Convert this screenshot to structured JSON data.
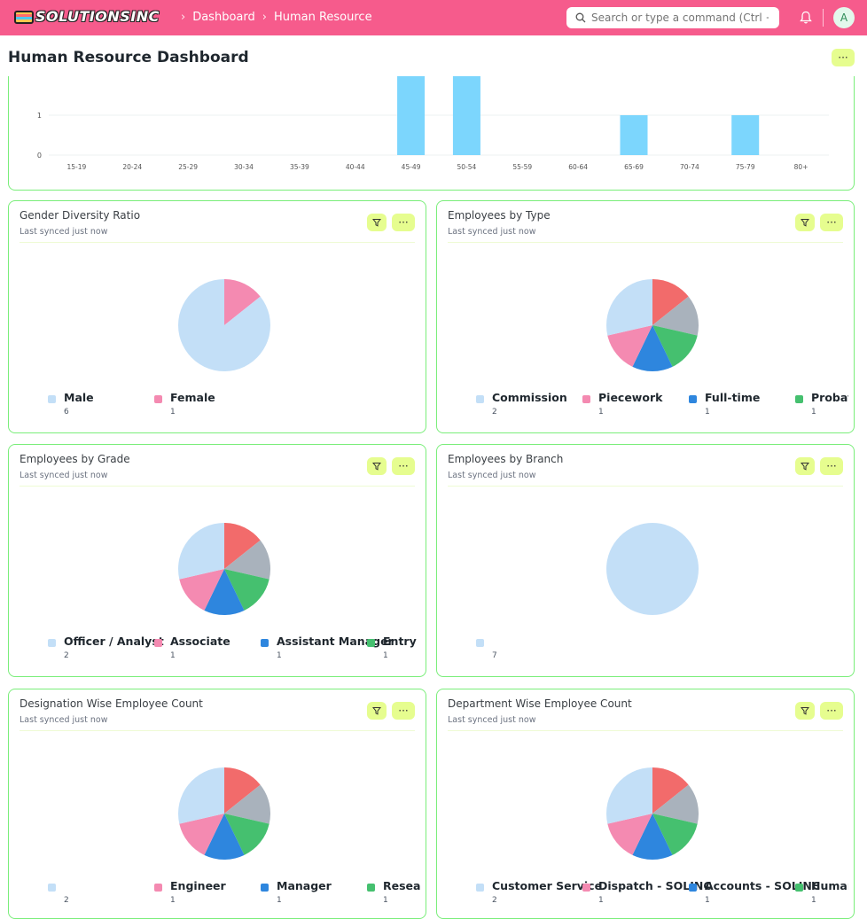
{
  "navbar": {
    "logo_text": "SOLUTIONSINC",
    "breadcrumbs": [
      "Dashboard",
      "Human Resource"
    ],
    "search_placeholder": "Search or type a command (Ctrl + G)",
    "avatar_letter": "A",
    "colors": {
      "bar": "#f65b8c",
      "accent": "#e6fd8f",
      "card_border": "#7aee7a"
    }
  },
  "page": {
    "title": "Human Resource Dashboard",
    "more_label": "···"
  },
  "age_chart": {
    "chart_data": {
      "type": "bar",
      "categories": [
        "15-19",
        "20-24",
        "25-29",
        "30-34",
        "35-39",
        "40-44",
        "45-49",
        "50-54",
        "55-59",
        "60-64",
        "65-69",
        "70-74",
        "75-79",
        "80+"
      ],
      "values": [
        0,
        0,
        0,
        0,
        0,
        0,
        2,
        2,
        0,
        0,
        1,
        0,
        1,
        0
      ],
      "visible_yticks": [
        "0",
        "1"
      ],
      "ylim": [
        0,
        2
      ],
      "color": "#7cd6fd"
    }
  },
  "cards": [
    {
      "title": "Gender Diversity Ratio",
      "subtitle": "Last synced just now",
      "more_label": "···",
      "chart_data": {
        "type": "pie",
        "slices": [
          {
            "label": "Male",
            "value": 6,
            "color": "#c3dff7"
          },
          {
            "label": "Female",
            "value": 1,
            "color": "#f48ab1"
          }
        ]
      }
    },
    {
      "title": "Employees by Type",
      "subtitle": "Last synced just now",
      "more_label": "···",
      "chart_data": {
        "type": "pie",
        "slices": [
          {
            "label": "Commission",
            "value": 2,
            "color": "#c3dff7"
          },
          {
            "label": "Piecework",
            "value": 1,
            "color": "#f48ab1"
          },
          {
            "label": "Full-time",
            "value": 1,
            "color": "#2e86de"
          },
          {
            "label": "Probation",
            "value": 1,
            "color": "#45c06f"
          },
          {
            "label": "",
            "value": 1,
            "color": "#a9b2bc"
          },
          {
            "label": "",
            "value": 1,
            "color": "#f26b6b"
          }
        ]
      }
    },
    {
      "title": "Employees by Grade",
      "subtitle": "Last synced just now",
      "more_label": "···",
      "chart_data": {
        "type": "pie",
        "slices": [
          {
            "label": "Officer / Analyst",
            "value": 2,
            "color": "#c3dff7"
          },
          {
            "label": "Associate",
            "value": 1,
            "color": "#f48ab1"
          },
          {
            "label": "Assistant Manager",
            "value": 1,
            "color": "#2e86de"
          },
          {
            "label": "Entry Level",
            "value": 1,
            "color": "#45c06f"
          },
          {
            "label": "",
            "value": 1,
            "color": "#a9b2bc"
          },
          {
            "label": "",
            "value": 1,
            "color": "#f26b6b"
          }
        ]
      }
    },
    {
      "title": "Employees by Branch",
      "subtitle": "Last synced just now",
      "more_label": "···",
      "chart_data": {
        "type": "pie",
        "slices": [
          {
            "label": "",
            "value": 7,
            "color": "#c3dff7"
          }
        ]
      }
    },
    {
      "title": "Designation Wise Employee Count",
      "subtitle": "Last synced just now",
      "more_label": "···",
      "chart_data": {
        "type": "pie",
        "slices": [
          {
            "label": "",
            "value": 2,
            "color": "#c3dff7"
          },
          {
            "label": "Engineer",
            "value": 1,
            "color": "#f48ab1"
          },
          {
            "label": "Manager",
            "value": 1,
            "color": "#2e86de"
          },
          {
            "label": "Researcher",
            "value": 1,
            "color": "#45c06f"
          },
          {
            "label": "",
            "value": 1,
            "color": "#a9b2bc"
          },
          {
            "label": "",
            "value": 1,
            "color": "#f26b6b"
          }
        ]
      }
    },
    {
      "title": "Department Wise Employee Count",
      "subtitle": "Last synced just now",
      "more_label": "···",
      "chart_data": {
        "type": "pie",
        "slices": [
          {
            "label": "Customer Service",
            "value": 2,
            "color": "#c3dff7"
          },
          {
            "label": "Dispatch - SOLINC",
            "value": 1,
            "color": "#f48ab1"
          },
          {
            "label": "Accounts - SOLINC",
            "value": 1,
            "color": "#2e86de"
          },
          {
            "label": "Human Resources",
            "value": 1,
            "color": "#45c06f"
          },
          {
            "label": "",
            "value": 1,
            "color": "#a9b2bc"
          },
          {
            "label": "",
            "value": 1,
            "color": "#f26b6b"
          }
        ]
      }
    }
  ]
}
